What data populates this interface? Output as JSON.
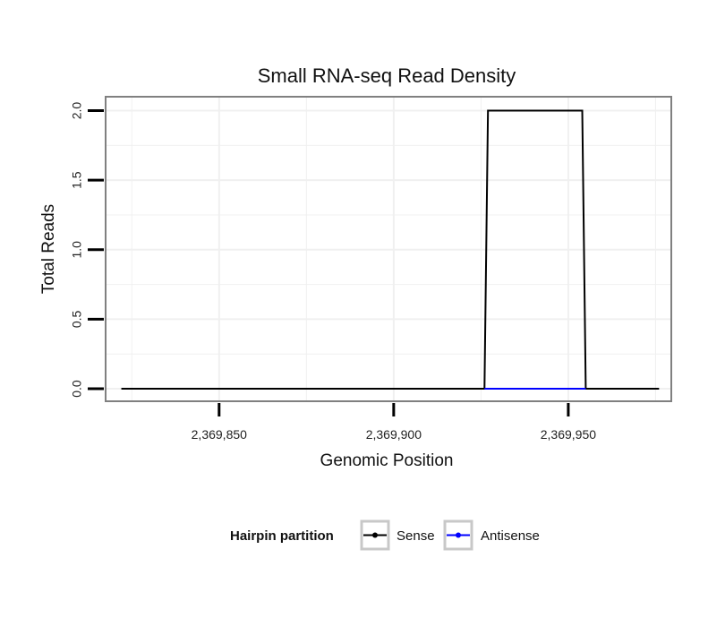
{
  "chart_data": {
    "type": "line",
    "title": "Small RNA-seq Read Density",
    "xlabel": "Genomic Position",
    "ylabel": "Total Reads",
    "xlim": [
      2369817.5,
      2369979.5
    ],
    "ylim": [
      -0.09,
      2.1
    ],
    "x_ticks": [
      2369850,
      2369900,
      2369950
    ],
    "x_tick_labels": [
      "2,369,850",
      "2,369,900",
      "2,369,950"
    ],
    "y_ticks": [
      0,
      0.5,
      1,
      1.5,
      2
    ],
    "y_tick_labels": [
      "0.0",
      "0.5",
      "1.0",
      "1.5",
      "2.0"
    ],
    "grid": true,
    "legend": {
      "title": "Hairpin partition",
      "position": "bottom"
    },
    "series": [
      {
        "name": "Sense",
        "color": "#000000",
        "x": [
          2369822,
          2369926,
          2369927,
          2369954,
          2369955,
          2369976
        ],
        "y": [
          0,
          0,
          2,
          2,
          0,
          0
        ]
      },
      {
        "name": "Antisense",
        "color": "#0000ff",
        "x": [
          2369926,
          2369955
        ],
        "y": [
          0,
          0
        ]
      }
    ]
  },
  "colors": {
    "grid": "#f0f0f0",
    "panel_border": "#808080",
    "legend_key_border": "#c8c8c8"
  }
}
